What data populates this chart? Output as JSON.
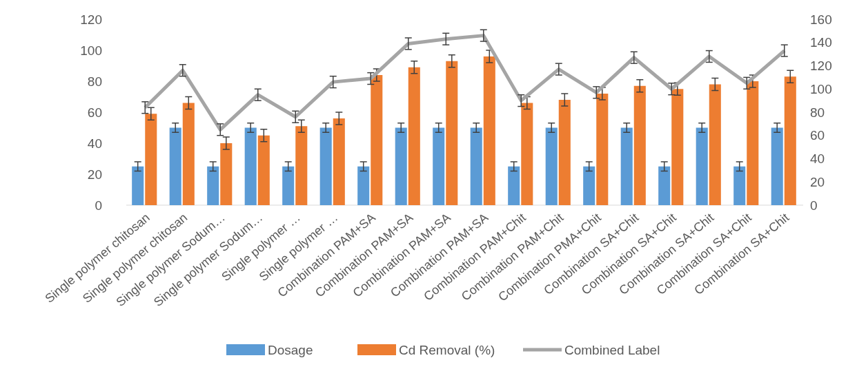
{
  "chart_data": {
    "type": "bar",
    "categories": [
      "Single polymer chitosan",
      "Single polymer chitosan",
      "Single polymer Sodum…",
      "Single polymer Sodum…",
      "Single polymer …",
      "Single polymer …",
      "Combination PAM+SA",
      "Combination PAM+SA",
      "Combination PAM+SA",
      "Combination PAM+SA",
      "Combination PAM+Chit",
      "Combination PAM+Chit",
      "Combination PMA+Chit",
      "Combination SA+Chit",
      "Combination SA+Chit",
      "Combination SA+Chit",
      "Combination SA+Chit",
      "Combination SA+Chit"
    ],
    "series": [
      {
        "name": "Dosage",
        "color": "#5b9bd5",
        "values": [
          25,
          50,
          25,
          50,
          25,
          50,
          25,
          50,
          50,
          50,
          25,
          50,
          25,
          50,
          25,
          50,
          25,
          50
        ],
        "errors": [
          3,
          3,
          3,
          3,
          3,
          3,
          3,
          3,
          3,
          3,
          3,
          3,
          3,
          3,
          3,
          3,
          3,
          3
        ]
      },
      {
        "name": "Cd Removal (%)",
        "color": "#ed7d31",
        "values": [
          59,
          66,
          40,
          45,
          51,
          56,
          84,
          89,
          93,
          96,
          66,
          68,
          72,
          77,
          75,
          78,
          80,
          83
        ],
        "errors": [
          4,
          4,
          4,
          4,
          4,
          4,
          4,
          4,
          4,
          4,
          4,
          4,
          4,
          4,
          4,
          4,
          4,
          4
        ]
      },
      {
        "name": "Combined Label",
        "type": "line",
        "axis": "y2",
        "color": "#a5a5a5",
        "values": [
          84,
          116,
          65,
          95,
          76,
          106,
          109,
          139,
          143,
          146,
          90,
          117,
          97,
          127,
          100,
          128,
          105,
          133
        ],
        "errors": [
          5,
          5,
          5,
          5,
          5,
          5,
          5,
          5,
          5,
          5,
          5,
          5,
          5,
          5,
          5,
          5,
          5,
          5
        ]
      }
    ],
    "ylim": [
      0,
      120
    ],
    "yticks": [
      0,
      20,
      40,
      60,
      80,
      100,
      120
    ],
    "y2lim": [
      0,
      160
    ],
    "y2ticks": [
      0,
      20,
      40,
      60,
      80,
      100,
      120,
      140,
      160
    ],
    "legend": "bottom",
    "marker": "none",
    "line_style": "solid",
    "grid": false
  }
}
